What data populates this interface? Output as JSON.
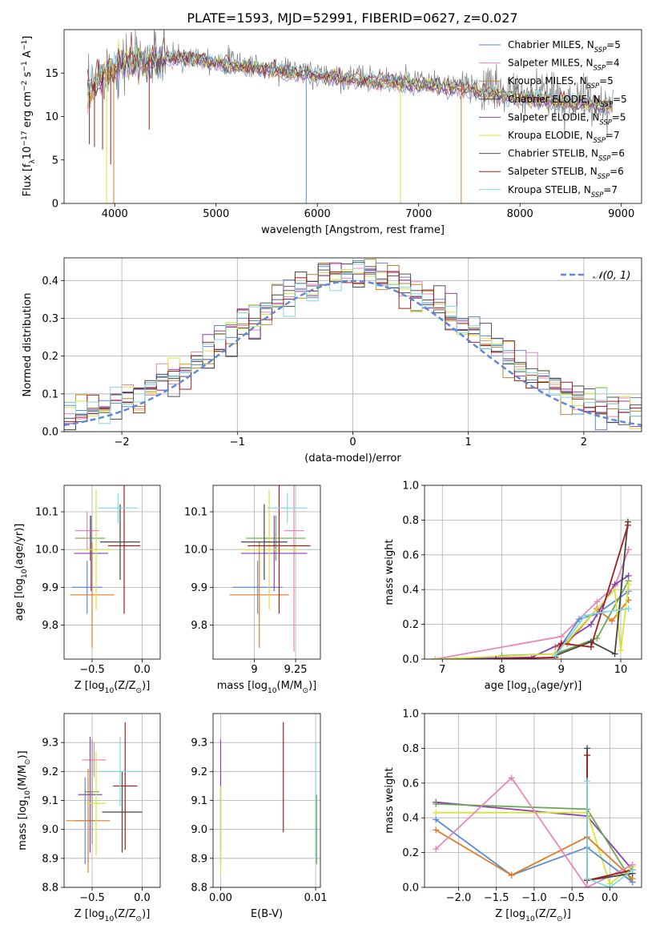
{
  "figure_title": "PLATE=1593, MJD=52991, FIBERID=0627, z=0.027",
  "colors": {
    "Chabrier MILES": "#5b8bd6",
    "Salpeter MILES": "#e787b9",
    "Kroupa MILES": "#b5892a",
    "Chabrier ELODIE": "#444444",
    "Salpeter ELODIE": "#8e3fb0",
    "Kroupa ELODIE": "#d8e33a",
    "Chabrier STELIB": "#555555",
    "Salpeter STELIB": "#a11d1d",
    "Kroupa STELIB": "#7fd8df",
    "green": "#6aa84f",
    "orange": "#e07b25",
    "normal": "#5b8bd6"
  },
  "chart_data": [
    {
      "id": "spectrum",
      "type": "line",
      "title": "PLATE=1593, MJD=52991, FIBERID=0627, z=0.027",
      "xlabel": "wavelength [Angstrom, rest frame]",
      "ylabel_parts": [
        "Flux [f",
        "λ",
        "10",
        "−17",
        " erg cm",
        "−2",
        " s",
        "−1",
        " A",
        "−1",
        "]"
      ],
      "xlim": [
        3500,
        9200
      ],
      "ylim": [
        0,
        20
      ],
      "xticks": [
        4000,
        5000,
        6000,
        7000,
        8000,
        9000
      ],
      "yticks": [
        0,
        5,
        10,
        15
      ],
      "grid": false,
      "legend_position": "top-right",
      "legend": [
        {
          "name": "Chabrier MILES",
          "n": "5"
        },
        {
          "name": "Salpeter MILES",
          "n": "4"
        },
        {
          "name": "Kroupa MILES",
          "n": "5"
        },
        {
          "name": "Chabrier ELODIE",
          "n": "5"
        },
        {
          "name": "Salpeter ELODIE",
          "n": "5"
        },
        {
          "name": "Kroupa ELODIE",
          "n": "7"
        },
        {
          "name": "Chabrier STELIB",
          "n": "6"
        },
        {
          "name": "Salpeter STELIB",
          "n": "6"
        },
        {
          "name": "Kroupa STELIB",
          "n": "7"
        }
      ],
      "legend_text": [
        "Chabrier MILES, N",
        "=5",
        "Salpeter MILES, N",
        "=4",
        "Kroupa MILES, N",
        "=5",
        "Chabrier ELODIE, N",
        "=5",
        "Salpeter ELODIE, N",
        "=5",
        "Kroupa ELODIE, N",
        "=7",
        "Chabrier STELIB, N",
        "=6",
        "Salpeter STELIB, N",
        "=6",
        "Kroupa STELIB, N",
        "=7"
      ],
      "legend_sub": "SSP",
      "data_trend": [
        [
          3730,
          12.5
        ],
        [
          3800,
          14
        ],
        [
          3900,
          15.5
        ],
        [
          4000,
          16
        ],
        [
          4100,
          16.5
        ],
        [
          4300,
          16.8
        ],
        [
          4500,
          17
        ],
        [
          4800,
          17
        ],
        [
          5000,
          16.5
        ],
        [
          5500,
          15.8
        ],
        [
          6000,
          15
        ],
        [
          6500,
          14.5
        ],
        [
          7000,
          14
        ],
        [
          7500,
          13.5
        ],
        [
          8000,
          12.5
        ],
        [
          8500,
          12
        ],
        [
          8900,
          11.5
        ]
      ],
      "spikes": [
        [
          3750,
          6.8
        ],
        [
          3800,
          6.5
        ],
        [
          3880,
          6.2
        ],
        [
          3920,
          0
        ],
        [
          3960,
          4.5
        ],
        [
          3990,
          0
        ],
        [
          4340,
          8.5
        ],
        [
          5890,
          0
        ],
        [
          6820,
          0
        ],
        [
          7420,
          0
        ]
      ]
    },
    {
      "id": "residuals",
      "type": "histogram",
      "xlabel": "(data-model)/error",
      "ylabel": "Normed distribution",
      "xlim": [
        -2.5,
        2.5
      ],
      "ylim": [
        0,
        0.46
      ],
      "xticks": [
        -2,
        -1,
        0,
        1,
        2
      ],
      "yticks": [
        0.0,
        0.1,
        0.2,
        0.3,
        0.4
      ],
      "grid": true,
      "legend_position": "top-right",
      "legend": [
        "𝒩(0, 1)"
      ],
      "bin_width": 0.1,
      "bins_start": -2.5,
      "reference_curve": {
        "mu": 0,
        "sigma": 1
      }
    },
    {
      "id": "age-vs-Z",
      "type": "scatter",
      "xlabel_parts": [
        "Z [log",
        "10",
        "(Z/Z",
        "⊙",
        ")]"
      ],
      "ylabel_parts": [
        "age  [log",
        "10",
        "(age/yr)]"
      ],
      "xlim": [
        -0.78,
        0.18
      ],
      "ylim": [
        9.71,
        10.17
      ],
      "xticks": [
        -0.5,
        0.0
      ],
      "yticks": [
        9.8,
        9.9,
        10.0,
        10.1
      ],
      "grid": true,
      "points": [
        {
          "x": -0.55,
          "xerr": 0.15,
          "y": 9.9,
          "yerr": 0.07,
          "c": "#5b8bd6"
        },
        {
          "x": -0.5,
          "xerr": 0.22,
          "y": 9.88,
          "yerr": 0.14,
          "c": "#e07b25"
        },
        {
          "x": -0.52,
          "xerr": 0.15,
          "y": 10.03,
          "yerr": 0.06,
          "c": "#6aa84f"
        },
        {
          "x": -0.55,
          "xerr": 0.12,
          "y": 10.05,
          "yerr": 0.05,
          "c": "#e787b9"
        },
        {
          "x": -0.51,
          "xerr": 0.17,
          "y": 9.99,
          "yerr": 0.1,
          "c": "#8e3fb0"
        },
        {
          "x": -0.46,
          "xerr": 0.17,
          "y": 10.0,
          "yerr": 0.16,
          "c": "#d8e33a"
        },
        {
          "x": -0.22,
          "xerr": 0.2,
          "y": 10.02,
          "yerr": 0.1,
          "c": "#444444"
        },
        {
          "x": -0.18,
          "xerr": 0.16,
          "y": 10.01,
          "yerr": 0.18,
          "c": "#a11d1d"
        },
        {
          "x": -0.24,
          "xerr": 0.2,
          "y": 10.11,
          "yerr": 0.04,
          "c": "#7fd8df"
        }
      ]
    },
    {
      "id": "age-vs-mass",
      "type": "scatter",
      "xlabel_parts": [
        "mass [log",
        "10",
        "(M/M",
        "⊙",
        ")]"
      ],
      "ylabel": "",
      "xlim": [
        8.75,
        9.4
      ],
      "ylim": [
        9.71,
        10.17
      ],
      "xticks": [
        9.0,
        9.25
      ],
      "yticks": [
        9.8,
        9.9,
        10.0,
        10.1
      ],
      "grid": true,
      "points": [
        {
          "x": 9.02,
          "xerr": 0.15,
          "y": 9.9,
          "yerr": 0.07,
          "c": "#5b8bd6"
        },
        {
          "x": 9.03,
          "xerr": 0.18,
          "y": 9.88,
          "yerr": 0.14,
          "c": "#e07b25"
        },
        {
          "x": 9.13,
          "xerr": 0.18,
          "y": 10.03,
          "yerr": 0.06,
          "c": "#6aa84f"
        },
        {
          "x": 9.24,
          "xerr": 0.06,
          "y": 10.05,
          "yerr": 0.32,
          "c": "#e787b9"
        },
        {
          "x": 9.12,
          "xerr": 0.2,
          "y": 9.99,
          "yerr": 0.1,
          "c": "#8e3fb0"
        },
        {
          "x": 9.09,
          "xerr": 0.18,
          "y": 10.0,
          "yerr": 0.16,
          "c": "#d8e33a"
        },
        {
          "x": 9.06,
          "xerr": 0.14,
          "y": 10.02,
          "yerr": 0.1,
          "c": "#444444"
        },
        {
          "x": 9.15,
          "xerr": 0.19,
          "y": 10.01,
          "yerr": 0.18,
          "c": "#a11d1d"
        },
        {
          "x": 9.2,
          "xerr": 0.12,
          "y": 10.11,
          "yerr": 0.04,
          "c": "#7fd8df"
        }
      ]
    },
    {
      "id": "weight-vs-age",
      "type": "line",
      "xlabel_parts": [
        "age  [log",
        "10",
        "(age/yr)]"
      ],
      "ylabel": "mass weight",
      "xlim": [
        6.7,
        10.35
      ],
      "ylim": [
        0,
        1
      ],
      "xticks": [
        7,
        8,
        9,
        10
      ],
      "yticks": [
        0.0,
        0.2,
        0.4,
        0.6,
        0.8,
        1.0
      ],
      "grid": true,
      "series": [
        {
          "c": "#e787b9",
          "x": [
            6.88,
            9.0,
            9.6,
            9.9,
            10.13
          ],
          "y": [
            0.0,
            0.13,
            0.33,
            0.42,
            0.63
          ]
        },
        {
          "c": "#5b8bd6",
          "x": [
            8.9,
            9.3,
            9.6,
            10.13
          ],
          "y": [
            0.03,
            0.23,
            0.26,
            0.39
          ]
        },
        {
          "c": "#e07b25",
          "x": [
            8.9,
            9.1,
            9.6,
            9.85,
            10.13
          ],
          "y": [
            0.07,
            0.09,
            0.29,
            0.22,
            0.34
          ]
        },
        {
          "c": "#8e3fb0",
          "x": [
            6.88,
            8.5,
            9.0,
            9.5,
            9.9,
            10.13
          ],
          "y": [
            0.0,
            0.01,
            0.09,
            0.2,
            0.43,
            0.48
          ]
        },
        {
          "c": "#6aa84f",
          "x": [
            8.0,
            8.9,
            9.6,
            10.13
          ],
          "y": [
            0.02,
            0.03,
            0.12,
            0.45
          ]
        },
        {
          "c": "#d8e33a",
          "x": [
            6.88,
            8.9,
            9.9,
            10.0,
            10.13
          ],
          "y": [
            0.0,
            0.03,
            0.4,
            0.05,
            0.43
          ]
        },
        {
          "c": "#444444",
          "x": [
            8.9,
            9.5,
            9.9,
            10.12
          ],
          "y": [
            0.02,
            0.1,
            0.03,
            0.79
          ]
        },
        {
          "c": "#a11d1d",
          "x": [
            7.9,
            8.9,
            9.0,
            9.5,
            10.12
          ],
          "y": [
            0.0,
            0.01,
            0.09,
            0.07,
            0.77
          ]
        },
        {
          "c": "#7fd8df",
          "x": [
            8.9,
            9.4,
            9.7,
            10.13
          ],
          "y": [
            0.02,
            0.25,
            0.27,
            0.29
          ]
        }
      ]
    },
    {
      "id": "mass-vs-Z",
      "type": "scatter",
      "xlabel_parts": [
        "Z [log",
        "10",
        "(Z/Z",
        "⊙",
        ")]"
      ],
      "ylabel_parts": [
        "mass [log",
        "10",
        "(M/M",
        "⊙",
        ")]"
      ],
      "xlim": [
        -0.78,
        0.18
      ],
      "ylim": [
        8.8,
        9.4
      ],
      "xticks": [
        -0.5,
        0.0
      ],
      "yticks": [
        8.8,
        8.9,
        9.0,
        9.1,
        9.2,
        9.3
      ],
      "grid": true,
      "points": [
        {
          "x": -0.57,
          "xerr": 0.1,
          "y": 9.03,
          "yerr": 0.15,
          "c": "#5b8bd6"
        },
        {
          "x": -0.54,
          "xerr": 0.22,
          "y": 9.03,
          "yerr": 0.18,
          "c": "#e07b25"
        },
        {
          "x": -0.5,
          "xerr": 0.07,
          "y": 9.13,
          "yerr": 0.18,
          "c": "#6aa84f"
        },
        {
          "x": -0.48,
          "xerr": 0.12,
          "y": 9.24,
          "yerr": 0.06,
          "c": "#e787b9"
        },
        {
          "x": -0.52,
          "xerr": 0.12,
          "y": 9.12,
          "yerr": 0.2,
          "c": "#8e3fb0"
        },
        {
          "x": -0.46,
          "xerr": 0.1,
          "y": 9.09,
          "yerr": 0.18,
          "c": "#d8e33a"
        },
        {
          "x": -0.2,
          "xerr": 0.2,
          "y": 9.06,
          "yerr": 0.14,
          "c": "#444444"
        },
        {
          "x": -0.17,
          "xerr": 0.12,
          "y": 9.15,
          "yerr": 0.22,
          "c": "#a11d1d"
        },
        {
          "x": -0.22,
          "xerr": 0.22,
          "y": 9.2,
          "yerr": 0.12,
          "c": "#7fd8df"
        }
      ]
    },
    {
      "id": "mass-vs-EBV",
      "type": "scatter",
      "xlabel": "E(B-V)",
      "ylabel": "",
      "xlim": [
        -0.0008,
        0.0105
      ],
      "ylim": [
        8.8,
        9.4
      ],
      "xticks": [
        0.0,
        0.01
      ],
      "yticks": [
        8.8,
        8.9,
        9.0,
        9.1,
        9.2,
        9.3
      ],
      "grid": true,
      "points": [
        {
          "x": 0.0,
          "xerr": 0,
          "y": 9.03,
          "yerr": 0.15,
          "c": "#5b8bd6"
        },
        {
          "x": 0.0,
          "xerr": 0,
          "y": 9.12,
          "yerr": 0.19,
          "c": "#8e3fb0"
        },
        {
          "x": 0.0,
          "xerr": 0,
          "y": 9.0,
          "yerr": 0.15,
          "c": "#d8e33a"
        },
        {
          "x": 0.0066,
          "xerr": 0,
          "y": 9.18,
          "yerr": 0.19,
          "c": "#a11d1d"
        },
        {
          "x": 0.01,
          "xerr": 0,
          "y": 9.1,
          "yerr": 0.2,
          "c": "#7fd8df"
        },
        {
          "x": 0.0101,
          "xerr": 0,
          "y": 9.0,
          "yerr": 0.12,
          "c": "#6aa84f"
        }
      ]
    },
    {
      "id": "weight-vs-Z",
      "type": "line",
      "xlabel_parts": [
        "Z [log",
        "10",
        "(Z/Z",
        "⊙",
        ")]"
      ],
      "ylabel": "mass weight",
      "xlim": [
        -2.45,
        0.42
      ],
      "ylim": [
        0,
        1
      ],
      "xticks": [
        -2.0,
        -1.5,
        -1.0,
        -0.5,
        0.0
      ],
      "yticks": [
        0.0,
        0.2,
        0.4,
        0.6,
        0.8,
        1.0
      ],
      "grid": true,
      "series": [
        {
          "c": "#8e3fb0",
          "x": [
            -2.3,
            -0.3,
            0.3
          ],
          "y": [
            0.49,
            0.41,
            0.1
          ]
        },
        {
          "c": "#6aa84f",
          "x": [
            -2.3,
            -0.3,
            0.3
          ],
          "y": [
            0.48,
            0.45,
            0.03
          ]
        },
        {
          "c": "#d8e33a",
          "x": [
            -2.3,
            -0.3,
            0.0,
            0.3
          ],
          "y": [
            0.43,
            0.43,
            0.02,
            0.12
          ]
        },
        {
          "c": "#5b8bd6",
          "x": [
            -2.3,
            -1.3,
            -0.3,
            0.3
          ],
          "y": [
            0.39,
            0.07,
            0.23,
            0.03
          ]
        },
        {
          "c": "#e07b25",
          "x": [
            -2.3,
            -1.3,
            -0.3,
            0.3
          ],
          "y": [
            0.33,
            0.07,
            0.29,
            0.05
          ]
        },
        {
          "c": "#e787b9",
          "x": [
            -2.3,
            -1.3,
            -0.3,
            0.3
          ],
          "y": [
            0.22,
            0.63,
            0.0,
            0.13
          ]
        },
        {
          "c": "#444444",
          "x": [
            -0.3,
            -0.3,
            0.3
          ],
          "y": [
            0.8,
            0.04,
            0.08
          ]
        },
        {
          "c": "#a11d1d",
          "x": [
            -0.3,
            -0.3,
            0.3
          ],
          "y": [
            0.76,
            0.04,
            0.1
          ]
        },
        {
          "c": "#7fd8df",
          "x": [
            -0.3,
            -0.3,
            0.0,
            0.3
          ],
          "y": [
            0.61,
            0.05,
            0.0,
            0.1
          ]
        }
      ]
    }
  ]
}
